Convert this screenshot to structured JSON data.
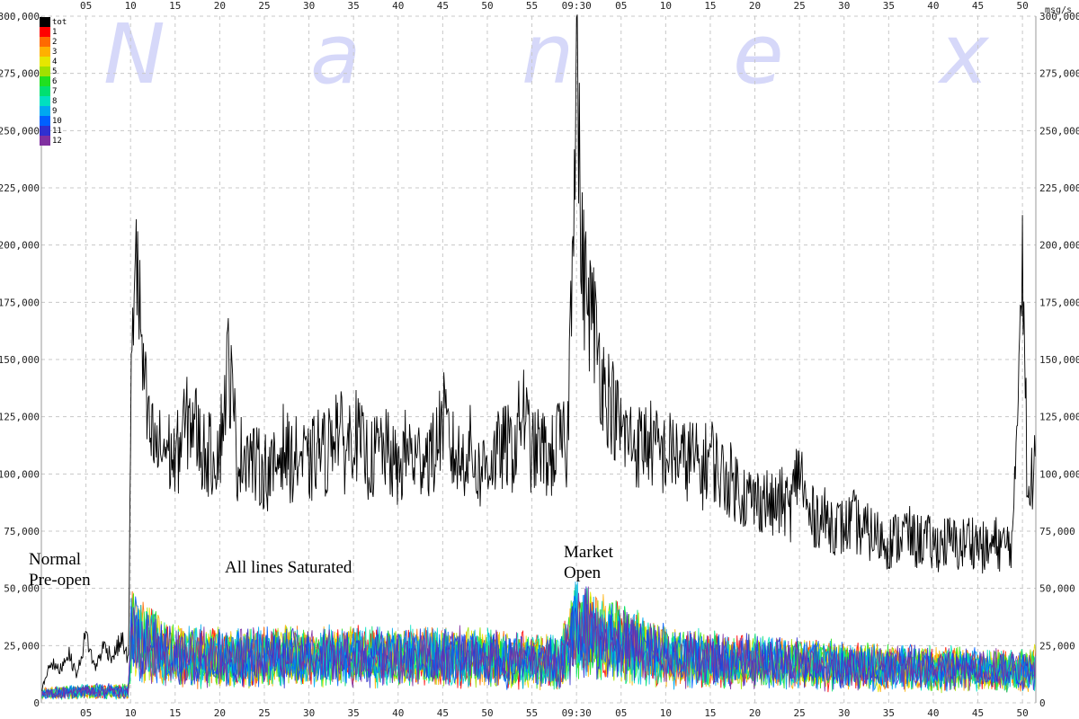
{
  "watermark": "Nanex",
  "chart_data": {
    "type": "line",
    "unit": "msg/s",
    "ylim": [
      0,
      300000
    ],
    "y_ticks": [
      0,
      25000,
      50000,
      75000,
      100000,
      125000,
      150000,
      175000,
      200000,
      225000,
      250000,
      275000,
      300000
    ],
    "y_tick_labels": [
      "0",
      "25,000",
      "50,000",
      "75,000",
      "100,000",
      "125,000",
      "150,000",
      "175,000",
      "200,000",
      "225,000",
      "250,000",
      "275,000",
      "300,000"
    ],
    "x_tick_labels": [
      "05",
      "10",
      "15",
      "20",
      "25",
      "30",
      "35",
      "40",
      "45",
      "50",
      "55",
      "09:30",
      "05",
      "10",
      "15",
      "20",
      "25",
      "30",
      "35",
      "40",
      "45",
      "50"
    ],
    "x_range_minutes": [
      0,
      111.5
    ],
    "x_ticks_minutes": [
      5,
      10,
      15,
      20,
      25,
      30,
      35,
      40,
      45,
      50,
      55,
      60,
      65,
      70,
      75,
      80,
      85,
      90,
      95,
      100,
      105,
      110
    ],
    "grid": true,
    "legend_position": "top-left",
    "legend": [
      {
        "name": "tot",
        "color": "#000000"
      },
      {
        "name": "1",
        "color": "#ff0000"
      },
      {
        "name": "2",
        "color": "#ff6a00"
      },
      {
        "name": "3",
        "color": "#ffb000"
      },
      {
        "name": "4",
        "color": "#e6e600"
      },
      {
        "name": "5",
        "color": "#a0e000"
      },
      {
        "name": "6",
        "color": "#20e020"
      },
      {
        "name": "7",
        "color": "#00e070"
      },
      {
        "name": "8",
        "color": "#00e0c0"
      },
      {
        "name": "9",
        "color": "#00a8f0"
      },
      {
        "name": "10",
        "color": "#0060ff"
      },
      {
        "name": "11",
        "color": "#3030d0"
      },
      {
        "name": "12",
        "color": "#8030a0"
      }
    ],
    "series_tot": {
      "name": "tot",
      "points": [
        [
          0,
          5000
        ],
        [
          1,
          18000
        ],
        [
          2,
          14000
        ],
        [
          3,
          22000
        ],
        [
          4,
          12000
        ],
        [
          5,
          30000
        ],
        [
          6,
          15000
        ],
        [
          7,
          25000
        ],
        [
          8,
          20000
        ],
        [
          9,
          28000
        ],
        [
          9.8,
          18000
        ],
        [
          10,
          120000
        ],
        [
          10.5,
          208000
        ],
        [
          11,
          170000
        ],
        [
          11.5,
          140000
        ],
        [
          12,
          118000
        ],
        [
          13,
          110000
        ],
        [
          14,
          112000
        ],
        [
          15,
          105000
        ],
        [
          16,
          120000
        ],
        [
          17,
          125000
        ],
        [
          18,
          110000
        ],
        [
          19,
          108000
        ],
        [
          20,
          112000
        ],
        [
          21,
          150000
        ],
        [
          22,
          105000
        ],
        [
          23,
          112000
        ],
        [
          24,
          103000
        ],
        [
          25,
          102000
        ],
        [
          26,
          100000
        ],
        [
          27,
          113000
        ],
        [
          28,
          105000
        ],
        [
          29,
          108000
        ],
        [
          30,
          102000
        ],
        [
          31,
          112000
        ],
        [
          32,
          108000
        ],
        [
          33,
          125000
        ],
        [
          34,
          110000
        ],
        [
          35,
          120000
        ],
        [
          36,
          110000
        ],
        [
          37,
          105000
        ],
        [
          38,
          112000
        ],
        [
          39,
          108000
        ],
        [
          40,
          100000
        ],
        [
          41,
          112000
        ],
        [
          42,
          105000
        ],
        [
          43,
          110000
        ],
        [
          44,
          108000
        ],
        [
          45,
          125000
        ],
        [
          46,
          110000
        ],
        [
          47,
          105000
        ],
        [
          48,
          112000
        ],
        [
          49,
          100000
        ],
        [
          50,
          105000
        ],
        [
          51,
          108000
        ],
        [
          52,
          112000
        ],
        [
          53,
          110000
        ],
        [
          54,
          130000
        ],
        [
          55,
          108000
        ],
        [
          56,
          112000
        ],
        [
          57,
          105000
        ],
        [
          58,
          115000
        ],
        [
          59,
          110000
        ],
        [
          60,
          292000
        ],
        [
          60.5,
          200000
        ],
        [
          61,
          180000
        ],
        [
          62,
          165000
        ],
        [
          63,
          140000
        ],
        [
          64,
          130000
        ],
        [
          65,
          118000
        ],
        [
          66,
          115000
        ],
        [
          67,
          112000
        ],
        [
          68,
          115000
        ],
        [
          69,
          110000
        ],
        [
          70,
          108000
        ],
        [
          71,
          110000
        ],
        [
          72,
          105000
        ],
        [
          73,
          108000
        ],
        [
          74,
          100000
        ],
        [
          75,
          110000
        ],
        [
          76,
          100000
        ],
        [
          77,
          98000
        ],
        [
          78,
          95000
        ],
        [
          79,
          90000
        ],
        [
          80,
          88000
        ],
        [
          81,
          90000
        ],
        [
          82,
          85000
        ],
        [
          83,
          88000
        ],
        [
          84,
          85000
        ],
        [
          85,
          105000
        ],
        [
          86,
          80000
        ],
        [
          87,
          82000
        ],
        [
          88,
          80000
        ],
        [
          89,
          78000
        ],
        [
          90,
          76000
        ],
        [
          91,
          80000
        ],
        [
          92,
          75000
        ],
        [
          93,
          74000
        ],
        [
          94,
          72000
        ],
        [
          95,
          70000
        ],
        [
          96,
          72000
        ],
        [
          97,
          75000
        ],
        [
          98,
          70000
        ],
        [
          99,
          72000
        ],
        [
          100,
          68000
        ],
        [
          101,
          70000
        ],
        [
          102,
          70000
        ],
        [
          103,
          68000
        ],
        [
          104,
          72000
        ],
        [
          105,
          70000
        ],
        [
          106,
          66000
        ],
        [
          107,
          70000
        ],
        [
          108,
          68000
        ],
        [
          109,
          72000
        ],
        [
          110,
          210000
        ],
        [
          110.6,
          80000
        ],
        [
          111,
          95000
        ],
        [
          111.5,
          120000
        ]
      ]
    },
    "lines_band": {
      "name": "lines 1-12",
      "points": [
        [
          0,
          4000
        ],
        [
          5,
          5000
        ],
        [
          9.8,
          5000
        ],
        [
          10,
          30000
        ],
        [
          15,
          20000
        ],
        [
          30,
          20000
        ],
        [
          45,
          20000
        ],
        [
          58,
          18000
        ],
        [
          60,
          32000
        ],
        [
          70,
          20000
        ],
        [
          90,
          16000
        ],
        [
          110,
          14000
        ],
        [
          111.5,
          15000
        ]
      ]
    },
    "annotations": [
      {
        "text": "Normal",
        "x_minutes": 0.0
      },
      {
        "text": "Pre-open",
        "x_minutes": 0.0
      },
      {
        "text": "All lines Saturated",
        "x_minutes": 25.0
      },
      {
        "text": "Market",
        "x_minutes": 60.2
      },
      {
        "text": "Open",
        "x_minutes": 60.2
      }
    ]
  }
}
